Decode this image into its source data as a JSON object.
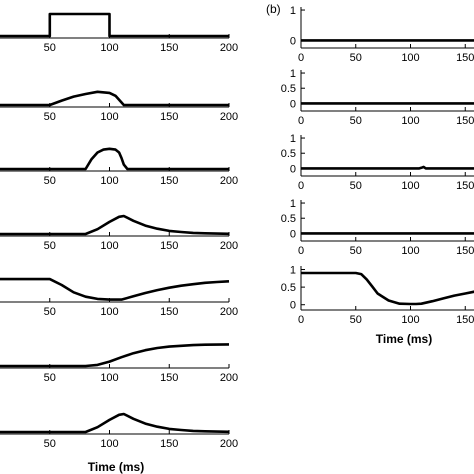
{
  "chart_data": [
    {
      "type": "line",
      "column": "a",
      "panel": 1,
      "xlim": [
        0,
        200
      ],
      "ylim": [
        0,
        1
      ],
      "x_ticks": [
        50,
        100,
        150,
        200
      ],
      "y_ticks": [],
      "series": [
        {
          "x": [
            0,
            50,
            50,
            100,
            100,
            200
          ],
          "y": [
            0,
            0,
            1,
            1,
            0,
            0
          ]
        }
      ]
    },
    {
      "type": "line",
      "column": "a",
      "panel": 2,
      "xlim": [
        0,
        200
      ],
      "ylim": [
        0,
        1
      ],
      "x_ticks": [
        50,
        100,
        150,
        200
      ],
      "y_ticks": [],
      "series": [
        {
          "x": [
            0,
            50,
            60,
            70,
            80,
            90,
            100,
            105,
            112,
            200
          ],
          "y": [
            0,
            0,
            0.2,
            0.38,
            0.5,
            0.6,
            0.55,
            0.42,
            0,
            0
          ]
        }
      ]
    },
    {
      "type": "line",
      "column": "a",
      "panel": 3,
      "xlim": [
        0,
        200
      ],
      "ylim": [
        0,
        1
      ],
      "x_ticks": [
        50,
        100,
        150,
        200
      ],
      "y_ticks": [],
      "series": [
        {
          "x": [
            0,
            80,
            85,
            90,
            95,
            100,
            105,
            108,
            110,
            112,
            115,
            200
          ],
          "y": [
            0,
            0,
            0.45,
            0.75,
            0.88,
            0.92,
            0.88,
            0.75,
            0.5,
            0.2,
            0,
            0
          ]
        }
      ]
    },
    {
      "type": "line",
      "column": "a",
      "panel": 4,
      "xlim": [
        0,
        200
      ],
      "ylim": [
        0,
        1
      ],
      "x_ticks": [
        50,
        100,
        150,
        200
      ],
      "y_ticks": [],
      "series": [
        {
          "x": [
            0,
            80,
            90,
            100,
            108,
            112,
            120,
            130,
            140,
            150,
            160,
            170,
            180,
            200
          ],
          "y": [
            0,
            0,
            0.22,
            0.55,
            0.78,
            0.82,
            0.6,
            0.38,
            0.24,
            0.14,
            0.09,
            0.05,
            0.03,
            0.01
          ]
        }
      ]
    },
    {
      "type": "line",
      "column": "a",
      "panel": 5,
      "xlim": [
        0,
        200
      ],
      "ylim": [
        0,
        1
      ],
      "x_ticks": [
        50,
        100,
        150,
        200
      ],
      "y_ticks": [],
      "series": [
        {
          "x": [
            0,
            50,
            60,
            70,
            80,
            90,
            100,
            110,
            120,
            130,
            140,
            150,
            160,
            170,
            180,
            190,
            200
          ],
          "y": [
            0.95,
            0.95,
            0.68,
            0.35,
            0.15,
            0.05,
            0.02,
            0.02,
            0.17,
            0.32,
            0.45,
            0.56,
            0.65,
            0.72,
            0.78,
            0.82,
            0.85
          ]
        }
      ]
    },
    {
      "type": "line",
      "column": "a",
      "panel": 6,
      "xlim": [
        0,
        200
      ],
      "ylim": [
        0,
        1
      ],
      "x_ticks": [
        50,
        100,
        150,
        200
      ],
      "y_ticks": [],
      "series": [
        {
          "x": [
            0,
            80,
            90,
            100,
            110,
            120,
            130,
            140,
            150,
            160,
            170,
            180,
            200
          ],
          "y": [
            0,
            0,
            0.05,
            0.2,
            0.4,
            0.58,
            0.72,
            0.82,
            0.88,
            0.92,
            0.95,
            0.97,
            0.98
          ]
        }
      ]
    },
    {
      "type": "line",
      "column": "a",
      "panel": 7,
      "xlim": [
        0,
        200
      ],
      "ylim": [
        0,
        1
      ],
      "x_ticks": [
        50,
        100,
        150,
        200
      ],
      "y_ticks": [],
      "series": [
        {
          "x": [
            0,
            80,
            90,
            100,
            108,
            112,
            120,
            130,
            140,
            150,
            160,
            170,
            180,
            200
          ],
          "y": [
            0,
            0,
            0.22,
            0.55,
            0.78,
            0.82,
            0.6,
            0.38,
            0.24,
            0.14,
            0.09,
            0.05,
            0.03,
            0.01
          ]
        }
      ]
    },
    {
      "type": "line",
      "column": "b",
      "panel": 1,
      "xlim": [
        0,
        200
      ],
      "ylim": [
        -0.25,
        1.1
      ],
      "x_ticks": [
        0,
        50,
        100,
        150
      ],
      "y_ticks": [
        0,
        1
      ],
      "series": [
        {
          "x": [
            0,
            200
          ],
          "y": [
            0,
            0
          ]
        }
      ]
    },
    {
      "type": "line",
      "column": "b",
      "panel": 2,
      "xlim": [
        0,
        200
      ],
      "ylim": [
        -0.25,
        1.1
      ],
      "x_ticks": [
        0,
        50,
        100,
        150
      ],
      "y_ticks": [
        0,
        0.5,
        1
      ],
      "series": [
        {
          "x": [
            0,
            200
          ],
          "y": [
            0,
            0
          ]
        }
      ]
    },
    {
      "type": "line",
      "column": "b",
      "panel": 3,
      "xlim": [
        0,
        200
      ],
      "ylim": [
        -0.25,
        1.1
      ],
      "x_ticks": [
        0,
        50,
        100,
        150
      ],
      "y_ticks": [
        0,
        0.5,
        1
      ],
      "series": [
        {
          "x": [
            0,
            108,
            110,
            112,
            114,
            200
          ],
          "y": [
            0,
            0,
            0.02,
            0.05,
            0,
            0
          ]
        }
      ]
    },
    {
      "type": "line",
      "column": "b",
      "panel": 4,
      "xlim": [
        0,
        200
      ],
      "ylim": [
        -0.25,
        1.1
      ],
      "x_ticks": [
        0,
        50,
        100,
        150
      ],
      "y_ticks": [
        0,
        0.5,
        1
      ],
      "series": [
        {
          "x": [
            0,
            200
          ],
          "y": [
            0,
            0
          ]
        }
      ]
    },
    {
      "type": "line",
      "column": "b",
      "panel": 5,
      "xlim": [
        0,
        200
      ],
      "ylim": [
        -0.15,
        1.1
      ],
      "x_ticks": [
        0,
        50,
        100,
        150
      ],
      "y_ticks": [
        0,
        0.5,
        1
      ],
      "series": [
        {
          "x": [
            0,
            50,
            55,
            60,
            65,
            70,
            80,
            90,
            100,
            105,
            110,
            120,
            130,
            140,
            150,
            160,
            170,
            180,
            200
          ],
          "y": [
            0.9,
            0.9,
            0.87,
            0.72,
            0.52,
            0.32,
            0.12,
            0.03,
            0.02,
            0.02,
            0.03,
            0.1,
            0.18,
            0.26,
            0.32,
            0.38,
            0.44,
            0.5,
            0.55
          ]
        }
      ]
    }
  ],
  "figure": {
    "panel_b_tag": "(b)",
    "xlabel": "Time (ms)"
  },
  "style": {
    "line_color": "#000000",
    "axis_color": "#000000"
  }
}
